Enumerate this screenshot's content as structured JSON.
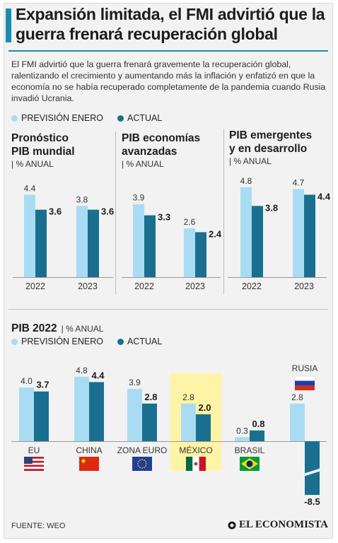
{
  "header": {
    "headline": "Expansión limitada, el FMI advirtió que la guerra frenará recuperación global",
    "intro": "El FMI advirtió que la guerra frenará gravemente la recuperación global, ralentizando el crecimiento y aumentando más la inflación y enfatizó en que la economía no se había recuperado completamente de la pandemia cuando Rusia invadió Ucrania."
  },
  "legend": {
    "forecast_label": "PREVISIÓN ENERO",
    "actual_label": "ACTUAL"
  },
  "colors": {
    "forecast": "#a9dcf3",
    "actual": "#1a6f91",
    "accent": "#1b8bb0",
    "highlight": "#fff3a6"
  },
  "panels": [
    {
      "title_line1": "Pronóstico",
      "title_line2": "PIB mundial",
      "unit": "| % ANUAL"
    },
    {
      "title_line1": "PIB economías",
      "title_line2": "avanzadas",
      "unit": "| % ANUAL"
    },
    {
      "title_line1": "PIB emergentes",
      "title_line2": "y en desarrollo",
      "unit": "| % ANUAL"
    }
  ],
  "section2": {
    "title": "PIB 2022",
    "unit": "| % ANUAL"
  },
  "footer": {
    "source": "FUENTE: WEO",
    "brand": "EL ECONOMISTA"
  },
  "chart_data": [
    {
      "type": "bar",
      "title": "Pronóstico PIB mundial",
      "ylabel": "% ANUAL",
      "categories": [
        "2022",
        "2023"
      ],
      "series": [
        {
          "name": "PREVISIÓN ENERO",
          "values": [
            4.4,
            3.8
          ]
        },
        {
          "name": "ACTUAL",
          "values": [
            3.6,
            3.6
          ]
        }
      ]
    },
    {
      "type": "bar",
      "title": "PIB economías avanzadas",
      "ylabel": "% ANUAL",
      "categories": [
        "2022",
        "2023"
      ],
      "series": [
        {
          "name": "PREVISIÓN ENERO",
          "values": [
            3.9,
            2.6
          ]
        },
        {
          "name": "ACTUAL",
          "values": [
            3.3,
            2.4
          ]
        }
      ]
    },
    {
      "type": "bar",
      "title": "PIB emergentes y en desarrollo",
      "ylabel": "% ANUAL",
      "categories": [
        "2022",
        "2023"
      ],
      "series": [
        {
          "name": "PREVISIÓN ENERO",
          "values": [
            4.8,
            4.7
          ]
        },
        {
          "name": "ACTUAL",
          "values": [
            3.8,
            4.4
          ]
        }
      ]
    },
    {
      "type": "bar",
      "title": "PIB 2022",
      "ylabel": "% ANUAL",
      "categories": [
        "EU",
        "CHINA",
        "ZONA EURO",
        "MÉXICO",
        "BRASIL",
        "RUSIA"
      ],
      "highlight": "MÉXICO",
      "series": [
        {
          "name": "PREVISIÓN ENERO",
          "values": [
            4.0,
            4.8,
            3.9,
            2.8,
            0.3,
            2.8
          ]
        },
        {
          "name": "ACTUAL",
          "values": [
            3.7,
            4.4,
            2.8,
            2.0,
            0.8,
            -8.5
          ]
        }
      ]
    }
  ]
}
